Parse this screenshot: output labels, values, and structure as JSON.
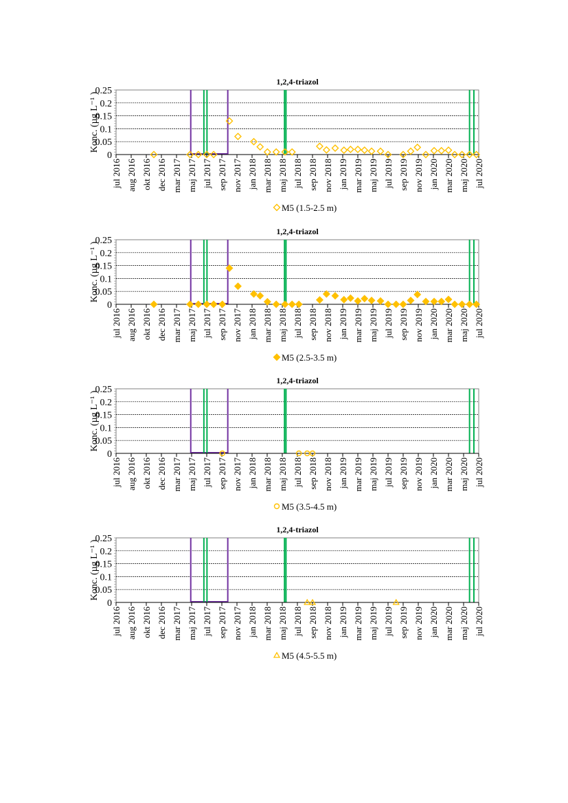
{
  "chart_data": [
    {
      "type": "scatter",
      "title": "1,2,4-triazol",
      "ylabel": "Konc. (µg L⁻¹ )",
      "ylim": [
        0,
        0.25
      ],
      "yticks": [
        "0",
        "0.05",
        "0.1",
        "0.15",
        "0.2",
        "0.25"
      ],
      "xticks": [
        "jul 2016",
        "aug 2016",
        "okt 2016",
        "dec 2016",
        "mar 2017",
        "maj 2017",
        "jul 2017",
        "sep 2017",
        "nov 2017",
        "jan 2018",
        "mar 2018",
        "maj 2018",
        "jul 2018",
        "sep 2018",
        "nov 2018",
        "jan 2019",
        "mar 2019",
        "maj 2019",
        "jul 2019",
        "sep 2019",
        "nov 2019",
        "jan 2020",
        "mar 2020",
        "maj 2020",
        "jul 2020"
      ],
      "grid": "horizontal dashed",
      "legend_position": "bottom",
      "series": [
        {
          "name": "M5 (1.5-2.5 m)",
          "marker": "diamond-open",
          "color": "#FFC000",
          "points": [
            [
              "2016-12-01",
              0
            ],
            [
              "2017-04-25",
              0
            ],
            [
              "2017-05-28",
              0
            ],
            [
              "2017-07-01",
              0
            ],
            [
              "2017-07-29",
              0
            ],
            [
              "2017-10-01",
              0.13
            ],
            [
              "2017-11-05",
              0.07
            ],
            [
              "2018-01-08",
              0.05
            ],
            [
              "2018-02-03",
              0.03
            ],
            [
              "2018-03-02",
              0.01
            ],
            [
              "2018-04-07",
              0.01
            ],
            [
              "2018-05-12",
              0.01
            ],
            [
              "2018-06-10",
              0.01
            ],
            [
              "2018-09-30",
              0.032
            ],
            [
              "2018-10-27",
              0.018
            ],
            [
              "2018-12-01",
              0.025
            ],
            [
              "2019-01-06",
              0.017
            ],
            [
              "2019-02-02",
              0.02
            ],
            [
              "2019-03-01",
              0.02
            ],
            [
              "2019-03-28",
              0.017
            ],
            [
              "2019-04-26",
              0.013
            ],
            [
              "2019-06-01",
              0.013
            ],
            [
              "2019-07-01",
              0
            ],
            [
              "2019-09-01",
              0
            ],
            [
              "2019-10-01",
              0.013
            ],
            [
              "2019-10-28",
              0.028
            ],
            [
              "2019-12-01",
              0
            ],
            [
              "2020-01-04",
              0.015
            ],
            [
              "2020-02-03",
              0.015
            ],
            [
              "2020-03-01",
              0.017
            ],
            [
              "2020-03-26",
              0
            ],
            [
              "2020-04-25",
              0
            ],
            [
              "2020-05-25",
              0
            ],
            [
              "2020-06-22",
              0
            ]
          ]
        }
      ]
    },
    {
      "type": "scatter",
      "title": "1,2,4-triazol",
      "ylabel": "Konc. (µg L⁻¹ )",
      "ylim": [
        0,
        0.25
      ],
      "yticks": [
        "0",
        "0.05",
        "0.1",
        "0.15",
        "0.2",
        "0.25"
      ],
      "xticks": [
        "jul 2016",
        "aug 2016",
        "okt 2016",
        "dec 2016",
        "mar 2017",
        "maj 2017",
        "jul 2017",
        "sep 2017",
        "nov 2017",
        "jan 2018",
        "mar 2018",
        "maj 2018",
        "jul 2018",
        "sep 2018",
        "nov 2018",
        "jan 2019",
        "mar 2019",
        "maj 2019",
        "jul 2019",
        "sep 2019",
        "nov 2019",
        "jan 2020",
        "mar 2020",
        "maj 2020",
        "jul 2020"
      ],
      "grid": "horizontal dashed",
      "legend_position": "bottom",
      "series": [
        {
          "name": "M5 (2.5-3.5 m)",
          "marker": "diamond-filled",
          "color": "#FFC000",
          "points": [
            [
              "2016-12-01",
              0
            ],
            [
              "2017-04-25",
              0
            ],
            [
              "2017-05-28",
              0
            ],
            [
              "2017-07-01",
              0
            ],
            [
              "2017-07-29",
              0
            ],
            [
              "2017-09-03",
              0
            ],
            [
              "2017-10-01",
              0.14
            ],
            [
              "2017-11-05",
              0.07
            ],
            [
              "2018-01-08",
              0.04
            ],
            [
              "2018-02-03",
              0.033
            ],
            [
              "2018-03-02",
              0.01
            ],
            [
              "2018-04-07",
              0
            ],
            [
              "2018-05-12",
              0
            ],
            [
              "2018-06-10",
              0
            ],
            [
              "2018-07-07",
              0
            ],
            [
              "2018-09-30",
              0.017
            ],
            [
              "2018-10-27",
              0.04
            ],
            [
              "2018-12-01",
              0.033
            ],
            [
              "2019-01-06",
              0.018
            ],
            [
              "2019-02-02",
              0.024
            ],
            [
              "2019-03-01",
              0.013
            ],
            [
              "2019-03-28",
              0.022
            ],
            [
              "2019-04-26",
              0.015
            ],
            [
              "2019-06-01",
              0.013
            ],
            [
              "2019-07-01",
              0
            ],
            [
              "2019-08-03",
              0
            ],
            [
              "2019-09-01",
              0
            ],
            [
              "2019-10-01",
              0.015
            ],
            [
              "2019-10-28",
              0.038
            ],
            [
              "2019-12-01",
              0.011
            ],
            [
              "2020-01-04",
              0.011
            ],
            [
              "2020-02-03",
              0.011
            ],
            [
              "2020-03-01",
              0.019
            ],
            [
              "2020-03-26",
              0
            ],
            [
              "2020-04-25",
              0
            ],
            [
              "2020-05-25",
              0
            ],
            [
              "2020-06-22",
              0
            ]
          ]
        }
      ]
    },
    {
      "type": "scatter",
      "title": "1,2,4-triazol",
      "ylabel": "Konc. (µg L⁻¹ )",
      "ylim": [
        0,
        0.25
      ],
      "yticks": [
        "0",
        "0.05",
        "0.1",
        "0.15",
        "0.2",
        "0.25"
      ],
      "xticks": [
        "jul 2016",
        "aug 2016",
        "okt 2016",
        "dec 2016",
        "mar 2017",
        "maj 2017",
        "jul 2017",
        "sep 2017",
        "nov 2017",
        "jan 2018",
        "mar 2018",
        "maj 2018",
        "jul 2018",
        "sep 2018",
        "nov 2018",
        "jan 2019",
        "mar 2019",
        "maj 2019",
        "jul 2019",
        "sep 2019",
        "nov 2019",
        "jan 2020",
        "mar 2020",
        "maj 2020",
        "jul 2020"
      ],
      "grid": "horizontal dashed",
      "legend_position": "bottom",
      "series": [
        {
          "name": "M5 (3.5-4.5 m)",
          "marker": "circle-open",
          "color": "#FFC000",
          "points": [
            [
              "2017-09-03",
              0
            ],
            [
              "2018-07-07",
              0
            ],
            [
              "2018-08-10",
              0
            ],
            [
              "2018-09-01",
              0
            ]
          ]
        }
      ]
    },
    {
      "type": "scatter",
      "title": "1,2,4-triazol",
      "ylabel": "Konc. (µg L⁻¹ )",
      "ylim": [
        0,
        0.25
      ],
      "yticks": [
        "0",
        "0.05",
        "0.1",
        "0.15",
        "0.2",
        "0.25"
      ],
      "xticks": [
        "jul 2016",
        "aug 2016",
        "okt 2016",
        "dec 2016",
        "mar 2017",
        "maj 2017",
        "jul 2017",
        "sep 2017",
        "nov 2017",
        "jan 2018",
        "mar 2018",
        "maj 2018",
        "jul 2018",
        "sep 2018",
        "nov 2018",
        "jan 2019",
        "mar 2019",
        "maj 2019",
        "jul 2019",
        "sep 2019",
        "nov 2019",
        "jan 2020",
        "mar 2020",
        "maj 2020",
        "jul 2020"
      ],
      "grid": "horizontal dashed",
      "legend_position": "bottom",
      "series": [
        {
          "name": "M5 (4.5-5.5 m)",
          "marker": "triangle-open",
          "color": "#FFC000",
          "points": [
            [
              "2018-08-10",
              0
            ],
            [
              "2018-09-01",
              0
            ],
            [
              "2019-08-03",
              0
            ]
          ]
        }
      ]
    }
  ],
  "markers": {
    "purple_color": "#7030A0",
    "green_color": "#00B050",
    "purple_period": [
      "2017-04-28",
      "2017-09-25"
    ],
    "green_lines": [
      "2017-06-20",
      "2017-07-02",
      "2018-05-10",
      "2018-05-16",
      "2020-05-25",
      "2020-06-12"
    ]
  }
}
